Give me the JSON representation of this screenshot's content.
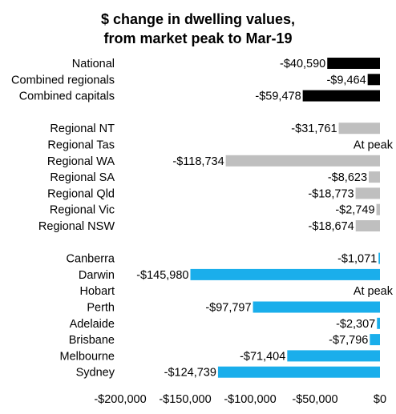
{
  "chart_data": {
    "type": "bar",
    "orientation": "horizontal",
    "title": "$ change in dwelling values,",
    "subtitle": "from market peak to Mar-19",
    "xlim": [
      -200000,
      0
    ],
    "x_ticks": [
      {
        "value": -200000,
        "label": "-$200,000"
      },
      {
        "value": -150000,
        "label": "-$150,000"
      },
      {
        "value": -100000,
        "label": "-$100,000"
      },
      {
        "value": -50000,
        "label": "-$50,000"
      },
      {
        "value": 0,
        "label": "$0"
      }
    ],
    "grid": false,
    "groups": [
      {
        "color": "#000000",
        "bars": [
          {
            "category": "National",
            "value": -40590,
            "label": "-$40,590"
          },
          {
            "category": "Combined regionals",
            "value": -9464,
            "label": "-$9,464"
          },
          {
            "category": "Combined capitals",
            "value": -59478,
            "label": "-$59,478"
          }
        ]
      },
      {
        "color": "#BFBFBF",
        "bars": [
          {
            "category": "Regional NT",
            "value": -31761,
            "label": "-$31,761"
          },
          {
            "category": "Regional Tas",
            "value": 0,
            "label": "At peak"
          },
          {
            "category": "Regional WA",
            "value": -118734,
            "label": "-$118,734"
          },
          {
            "category": "Regional SA",
            "value": -8623,
            "label": "-$8,623"
          },
          {
            "category": "Regional Qld",
            "value": -18773,
            "label": "-$18,773"
          },
          {
            "category": "Regional Vic",
            "value": -2749,
            "label": "-$2,749"
          },
          {
            "category": "Regional NSW",
            "value": -18674,
            "label": "-$18,674"
          }
        ]
      },
      {
        "color": "#1AAEEB",
        "bars": [
          {
            "category": "Canberra",
            "value": -1071,
            "label": "-$1,071"
          },
          {
            "category": "Darwin",
            "value": -145980,
            "label": "-$145,980"
          },
          {
            "category": "Hobart",
            "value": 0,
            "label": "At peak"
          },
          {
            "category": "Perth",
            "value": -97797,
            "label": "-$97,797"
          },
          {
            "category": "Adelaide",
            "value": -2307,
            "label": "-$2,307"
          },
          {
            "category": "Brisbane",
            "value": -7796,
            "label": "-$7,796"
          },
          {
            "category": "Melbourne",
            "value": -71404,
            "label": "-$71,404"
          },
          {
            "category": "Sydney",
            "value": -124739,
            "label": "-$124,739"
          }
        ]
      }
    ]
  }
}
